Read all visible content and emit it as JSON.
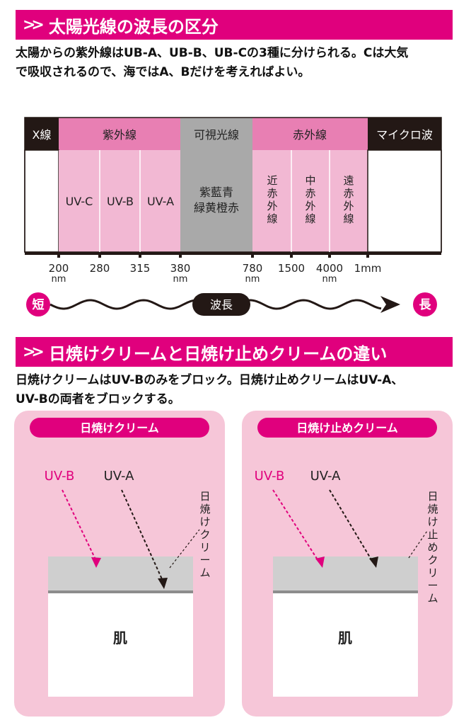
{
  "section1": {
    "title": "太陽光線の波長の区分",
    "description": "太陽からの紫外線はUB-A、UB-B、UB-Cの3種に分けられる。Cは大気\nで吸収されるので、海ではA、Bだけを考えればよい。"
  },
  "spectrum": {
    "categories": [
      "X線",
      "紫外線",
      "可視光線",
      "赤外線",
      "マイクロ波"
    ],
    "uv_bands": [
      "UV-C",
      "UV-B",
      "UV-A"
    ],
    "visible_colors": "紫藍青\n緑黄橙赤",
    "ir_bands": [
      "近赤外線",
      "中赤外線",
      "遠赤外線"
    ],
    "ticks": [
      "200",
      "280",
      "315",
      "380",
      "780",
      "1500",
      "4000",
      "1mm"
    ],
    "tick_units": [
      "nm",
      "nm",
      "nm",
      "nm"
    ],
    "wave_label": "波長",
    "short_label": "短",
    "long_label": "長",
    "colors": {
      "pink": "#f2b8d3",
      "pink_dark": "#e87fb3",
      "gray": "#a9a9a9",
      "dark": "#231815"
    }
  },
  "section2": {
    "title": "日焼けクリームと日焼け止めクリームの違い",
    "description": "日焼けクリームはUV-Bのみをブロック。日焼け止めクリームはUV-A、\nUV-Bの両者をブロックする。"
  },
  "panels": [
    {
      "title": "日焼けクリーム",
      "uvb": "UV-B",
      "uva": "UV-A",
      "layer_label": "日焼けクリーム",
      "skin": "肌"
    },
    {
      "title": "日焼け止めクリーム",
      "uvb": "UV-B",
      "uva": "UV-A",
      "layer_label": "日焼け止めクリーム",
      "skin": "肌"
    }
  ]
}
